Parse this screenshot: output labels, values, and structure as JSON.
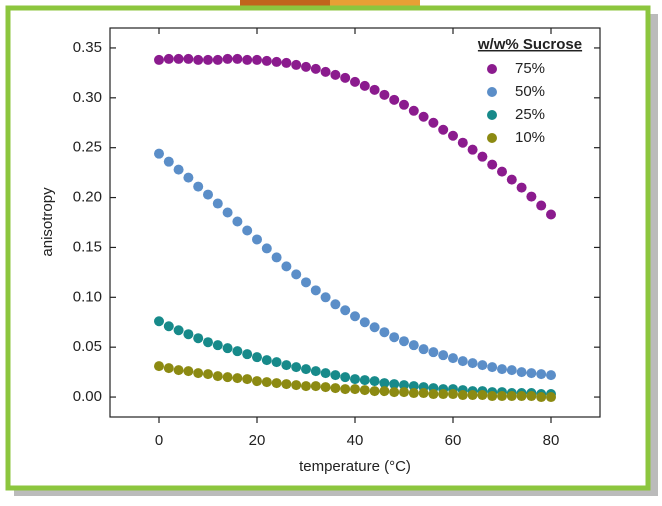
{
  "chart_data": {
    "type": "scatter",
    "x_label": "temperature (°C)",
    "y_label": "anisotropy",
    "legend_title": "w/w% Sucrose",
    "legend": "upper right",
    "x": [
      0,
      2,
      4,
      6,
      8,
      10,
      12,
      14,
      16,
      18,
      20,
      22,
      24,
      26,
      28,
      30,
      32,
      34,
      36,
      38,
      40,
      42,
      44,
      46,
      48,
      50,
      52,
      54,
      56,
      58,
      60,
      62,
      64,
      66,
      68,
      70,
      72,
      74,
      76,
      78,
      80
    ],
    "series": [
      {
        "name": "75%",
        "color": "#8b1b8e",
        "values": [
          0.338,
          0.339,
          0.339,
          0.339,
          0.338,
          0.338,
          0.338,
          0.339,
          0.339,
          0.338,
          0.338,
          0.337,
          0.336,
          0.335,
          0.333,
          0.331,
          0.329,
          0.326,
          0.323,
          0.32,
          0.316,
          0.312,
          0.308,
          0.303,
          0.298,
          0.293,
          0.287,
          0.281,
          0.275,
          0.268,
          0.262,
          0.255,
          0.248,
          0.241,
          0.233,
          0.226,
          0.218,
          0.21,
          0.201,
          0.192,
          0.183
        ]
      },
      {
        "name": "50%",
        "color": "#5b8ec8",
        "values": [
          0.244,
          0.236,
          0.228,
          0.22,
          0.211,
          0.203,
          0.194,
          0.185,
          0.176,
          0.167,
          0.158,
          0.149,
          0.14,
          0.131,
          0.123,
          0.115,
          0.107,
          0.1,
          0.093,
          0.087,
          0.081,
          0.075,
          0.07,
          0.065,
          0.06,
          0.056,
          0.052,
          0.048,
          0.045,
          0.042,
          0.039,
          0.036,
          0.034,
          0.032,
          0.03,
          0.028,
          0.027,
          0.025,
          0.024,
          0.023,
          0.022
        ]
      },
      {
        "name": "25%",
        "color": "#178a8a",
        "values": [
          0.076,
          0.071,
          0.067,
          0.063,
          0.059,
          0.055,
          0.052,
          0.049,
          0.046,
          0.043,
          0.04,
          0.037,
          0.035,
          0.032,
          0.03,
          0.028,
          0.026,
          0.024,
          0.022,
          0.02,
          0.018,
          0.017,
          0.016,
          0.014,
          0.013,
          0.012,
          0.011,
          0.01,
          0.009,
          0.008,
          0.008,
          0.007,
          0.006,
          0.006,
          0.005,
          0.005,
          0.004,
          0.004,
          0.004,
          0.003,
          0.003
        ]
      },
      {
        "name": "10%",
        "color": "#8c8a12",
        "values": [
          0.031,
          0.029,
          0.027,
          0.026,
          0.024,
          0.023,
          0.021,
          0.02,
          0.019,
          0.018,
          0.016,
          0.015,
          0.014,
          0.013,
          0.012,
          0.011,
          0.011,
          0.01,
          0.009,
          0.008,
          0.008,
          0.007,
          0.006,
          0.006,
          0.005,
          0.005,
          0.004,
          0.004,
          0.003,
          0.003,
          0.003,
          0.002,
          0.002,
          0.002,
          0.001,
          0.001,
          0.001,
          0.001,
          0.001,
          0.0,
          0.0
        ]
      }
    ],
    "xlim": [
      -10,
      90
    ],
    "ylim": [
      -0.02,
      0.37
    ],
    "xticks": [
      0,
      20,
      40,
      60,
      80
    ],
    "yticks": [
      {
        "value": 0,
        "label": "0.00"
      },
      0.05,
      {
        "value": 0.1,
        "label": "0.10"
      },
      0.15,
      {
        "value": 0.2,
        "label": "0.20"
      },
      0.25,
      {
        "value": 0.3,
        "label": "0.30"
      },
      0.35
    ]
  }
}
